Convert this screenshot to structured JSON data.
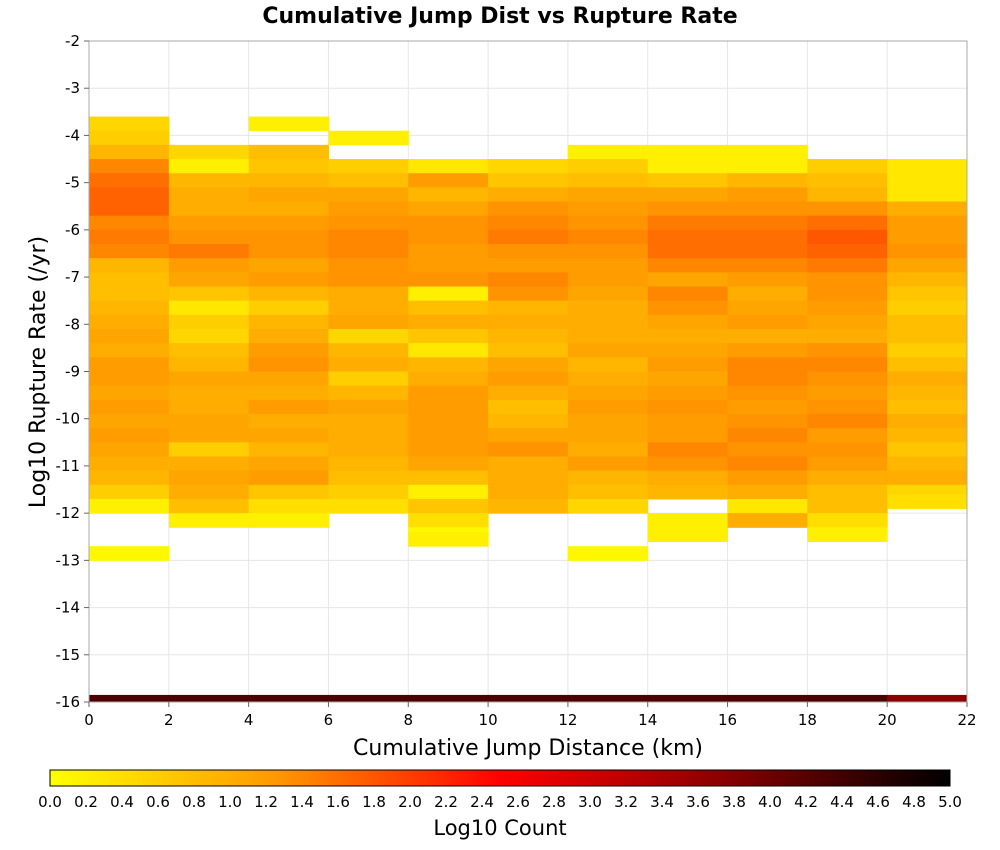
{
  "chart_data": {
    "type": "heatmap",
    "title": "Cumulative Jump Dist vs Rupture Rate",
    "xlabel": "Cumulative Jump Distance (km)",
    "ylabel": "Log10 Rupture Rate (/yr)",
    "xlim": [
      0,
      22
    ],
    "ylim": [
      -16,
      -2
    ],
    "xticks": [
      "0",
      "2",
      "4",
      "6",
      "8",
      "10",
      "12",
      "14",
      "16",
      "18",
      "20",
      "22"
    ],
    "yticks": [
      "-2",
      "-3",
      "-4",
      "-5",
      "-6",
      "-7",
      "-8",
      "-9",
      "-10",
      "-11",
      "-12",
      "-13",
      "-14",
      "-15",
      "-16"
    ],
    "grid": true,
    "x_bin_width": 2,
    "y_bin_height": 0.3,
    "colorbar": {
      "label": "Log10 Count",
      "range": [
        0,
        5
      ],
      "ticks": [
        "0.0",
        "0.2",
        "0.4",
        "0.6",
        "0.8",
        "1.0",
        "1.2",
        "1.4",
        "1.6",
        "1.8",
        "2.0",
        "2.2",
        "2.4",
        "2.6",
        "2.8",
        "3.0",
        "3.2",
        "3.4",
        "3.6",
        "3.8",
        "4.0",
        "4.2",
        "4.4",
        "4.6",
        "4.8",
        "5.0"
      ],
      "colormap": [
        "#ffff00",
        "#ff9900",
        "#ff0000",
        "#880000",
        "#000000"
      ]
    },
    "cells_note": "each column: x bin start (km) and list of [y bin top (log10 rate), log10 count]",
    "columns": [
      {
        "x": 0,
        "cells": [
          [
            -3.6,
            0.5
          ],
          [
            -3.9,
            0.6
          ],
          [
            -4.2,
            0.9
          ],
          [
            -4.5,
            1.4
          ],
          [
            -4.8,
            1.6
          ],
          [
            -5.1,
            1.7
          ],
          [
            -5.4,
            1.7
          ],
          [
            -5.7,
            1.4
          ],
          [
            -6.0,
            1.5
          ],
          [
            -6.3,
            1.4
          ],
          [
            -6.6,
            0.9
          ],
          [
            -6.9,
            0.8
          ],
          [
            -7.2,
            0.8
          ],
          [
            -7.5,
            0.9
          ],
          [
            -7.8,
            1.0
          ],
          [
            -8.1,
            1.1
          ],
          [
            -8.4,
            1.0
          ],
          [
            -8.7,
            1.2
          ],
          [
            -9.0,
            1.2
          ],
          [
            -9.3,
            1.1
          ],
          [
            -9.6,
            1.2
          ],
          [
            -9.9,
            1.1
          ],
          [
            -10.2,
            1.2
          ],
          [
            -10.5,
            1.1
          ],
          [
            -10.8,
            1.0
          ],
          [
            -11.1,
            0.9
          ],
          [
            -11.4,
            0.6
          ],
          [
            -11.7,
            0.2
          ],
          [
            -12.7,
            0.1
          ]
        ]
      },
      {
        "x": 2,
        "cells": [
          [
            -4.2,
            0.5
          ],
          [
            -4.5,
            0.2
          ],
          [
            -4.8,
            0.9
          ],
          [
            -5.1,
            1.0
          ],
          [
            -5.4,
            1.0
          ],
          [
            -5.7,
            1.2
          ],
          [
            -6.0,
            1.3
          ],
          [
            -6.3,
            1.5
          ],
          [
            -6.6,
            1.2
          ],
          [
            -6.9,
            1.1
          ],
          [
            -7.2,
            0.7
          ],
          [
            -7.5,
            0.3
          ],
          [
            -7.8,
            0.6
          ],
          [
            -8.1,
            0.5
          ],
          [
            -8.4,
            0.8
          ],
          [
            -8.7,
            0.9
          ],
          [
            -9.0,
            1.1
          ],
          [
            -9.3,
            1.0
          ],
          [
            -9.6,
            1.0
          ],
          [
            -9.9,
            1.1
          ],
          [
            -10.2,
            1.1
          ],
          [
            -10.5,
            0.6
          ],
          [
            -10.8,
            1.0
          ],
          [
            -11.1,
            1.1
          ],
          [
            -11.4,
            1.0
          ],
          [
            -11.7,
            0.8
          ],
          [
            -12.0,
            0.2
          ]
        ]
      },
      {
        "x": 4,
        "cells": [
          [
            -3.6,
            0.2
          ],
          [
            -4.2,
            0.8
          ],
          [
            -4.5,
            0.7
          ],
          [
            -4.8,
            0.9
          ],
          [
            -5.1,
            1.1
          ],
          [
            -5.4,
            1.0
          ],
          [
            -5.7,
            1.2
          ],
          [
            -6.0,
            1.3
          ],
          [
            -6.3,
            1.3
          ],
          [
            -6.6,
            1.1
          ],
          [
            -6.9,
            1.2
          ],
          [
            -7.2,
            0.9
          ],
          [
            -7.5,
            0.6
          ],
          [
            -7.8,
            0.9
          ],
          [
            -8.1,
            1.0
          ],
          [
            -8.4,
            1.2
          ],
          [
            -8.7,
            1.3
          ],
          [
            -9.0,
            1.1
          ],
          [
            -9.3,
            1.0
          ],
          [
            -9.6,
            1.2
          ],
          [
            -9.9,
            1.0
          ],
          [
            -10.2,
            1.1
          ],
          [
            -10.5,
            0.9
          ],
          [
            -10.8,
            1.1
          ],
          [
            -11.1,
            1.2
          ],
          [
            -11.4,
            0.7
          ],
          [
            -11.7,
            0.4
          ],
          [
            -12.0,
            0.2
          ]
        ]
      },
      {
        "x": 6,
        "cells": [
          [
            -3.9,
            0.2
          ],
          [
            -4.5,
            0.6
          ],
          [
            -4.8,
            0.8
          ],
          [
            -5.1,
            1.1
          ],
          [
            -5.4,
            1.2
          ],
          [
            -5.7,
            1.3
          ],
          [
            -6.0,
            1.4
          ],
          [
            -6.3,
            1.4
          ],
          [
            -6.6,
            1.3
          ],
          [
            -6.9,
            1.3
          ],
          [
            -7.2,
            1.0
          ],
          [
            -7.5,
            1.0
          ],
          [
            -7.8,
            1.1
          ],
          [
            -8.1,
            0.5
          ],
          [
            -8.4,
            0.9
          ],
          [
            -8.7,
            1.0
          ],
          [
            -9.0,
            0.6
          ],
          [
            -9.3,
            0.9
          ],
          [
            -9.6,
            1.1
          ],
          [
            -9.9,
            1.0
          ],
          [
            -10.2,
            1.0
          ],
          [
            -10.5,
            1.0
          ],
          [
            -10.8,
            0.9
          ],
          [
            -11.1,
            0.8
          ],
          [
            -11.4,
            0.6
          ],
          [
            -11.7,
            0.4
          ]
        ]
      },
      {
        "x": 8,
        "cells": [
          [
            -4.5,
            0.3
          ],
          [
            -4.8,
            1.2
          ],
          [
            -5.1,
            0.9
          ],
          [
            -5.4,
            1.1
          ],
          [
            -5.7,
            1.3
          ],
          [
            -6.0,
            1.3
          ],
          [
            -6.3,
            1.2
          ],
          [
            -6.6,
            1.2
          ],
          [
            -6.9,
            1.3
          ],
          [
            -7.2,
            0.2
          ],
          [
            -7.5,
            0.8
          ],
          [
            -7.8,
            1.0
          ],
          [
            -8.1,
            0.7
          ],
          [
            -8.4,
            0.3
          ],
          [
            -8.7,
            0.9
          ],
          [
            -9.0,
            1.0
          ],
          [
            -9.3,
            1.2
          ],
          [
            -9.6,
            1.2
          ],
          [
            -9.9,
            1.2
          ],
          [
            -10.2,
            1.2
          ],
          [
            -10.5,
            1.2
          ],
          [
            -10.8,
            1.1
          ],
          [
            -11.1,
            0.8
          ],
          [
            -11.4,
            0.2
          ],
          [
            -11.7,
            0.7
          ],
          [
            -12.0,
            0.4
          ],
          [
            -12.3,
            0.1
          ],
          [
            -12.4,
            0.2
          ]
        ]
      },
      {
        "x": 10,
        "cells": [
          [
            -4.5,
            0.5
          ],
          [
            -4.8,
            0.7
          ],
          [
            -5.1,
            1.0
          ],
          [
            -5.4,
            1.3
          ],
          [
            -5.7,
            1.4
          ],
          [
            -6.0,
            1.5
          ],
          [
            -6.3,
            1.3
          ],
          [
            -6.6,
            1.2
          ],
          [
            -6.9,
            1.4
          ],
          [
            -7.2,
            1.3
          ],
          [
            -7.5,
            0.9
          ],
          [
            -7.8,
            1.0
          ],
          [
            -8.1,
            0.9
          ],
          [
            -8.4,
            0.8
          ],
          [
            -8.7,
            1.1
          ],
          [
            -9.0,
            1.2
          ],
          [
            -9.3,
            1.0
          ],
          [
            -9.6,
            0.8
          ],
          [
            -9.9,
            0.9
          ],
          [
            -10.2,
            1.1
          ],
          [
            -10.5,
            1.3
          ],
          [
            -10.8,
            1.0
          ],
          [
            -11.1,
            1.0
          ],
          [
            -11.4,
            1.0
          ],
          [
            -11.7,
            0.9
          ]
        ]
      },
      {
        "x": 12,
        "cells": [
          [
            -4.2,
            0.2
          ],
          [
            -4.5,
            0.6
          ],
          [
            -4.8,
            0.8
          ],
          [
            -5.1,
            1.1
          ],
          [
            -5.4,
            1.2
          ],
          [
            -5.7,
            1.3
          ],
          [
            -6.0,
            1.4
          ],
          [
            -6.3,
            1.3
          ],
          [
            -6.6,
            1.2
          ],
          [
            -6.9,
            1.2
          ],
          [
            -7.2,
            1.1
          ],
          [
            -7.5,
            1.0
          ],
          [
            -7.8,
            1.0
          ],
          [
            -8.1,
            1.0
          ],
          [
            -8.4,
            1.1
          ],
          [
            -8.7,
            0.9
          ],
          [
            -9.0,
            1.0
          ],
          [
            -9.3,
            1.1
          ],
          [
            -9.6,
            1.2
          ],
          [
            -9.9,
            1.1
          ],
          [
            -10.2,
            1.1
          ],
          [
            -10.5,
            1.0
          ],
          [
            -10.8,
            1.2
          ],
          [
            -11.1,
            0.9
          ],
          [
            -11.4,
            0.8
          ],
          [
            -11.7,
            0.5
          ],
          [
            -12.7,
            0.1
          ]
        ]
      },
      {
        "x": 14,
        "cells": [
          [
            -4.2,
            0.2
          ],
          [
            -4.5,
            0.2
          ],
          [
            -4.8,
            0.7
          ],
          [
            -5.1,
            1.1
          ],
          [
            -5.4,
            1.3
          ],
          [
            -5.7,
            1.5
          ],
          [
            -6.0,
            1.6
          ],
          [
            -6.3,
            1.6
          ],
          [
            -6.6,
            1.4
          ],
          [
            -6.9,
            1.1
          ],
          [
            -7.2,
            1.4
          ],
          [
            -7.5,
            1.3
          ],
          [
            -7.8,
            1.1
          ],
          [
            -8.1,
            1.0
          ],
          [
            -8.4,
            1.1
          ],
          [
            -8.7,
            1.2
          ],
          [
            -9.0,
            1.1
          ],
          [
            -9.3,
            1.2
          ],
          [
            -9.6,
            1.3
          ],
          [
            -9.9,
            1.2
          ],
          [
            -10.2,
            1.2
          ],
          [
            -10.5,
            1.4
          ],
          [
            -10.8,
            1.3
          ],
          [
            -11.1,
            1.0
          ],
          [
            -11.4,
            0.9
          ],
          [
            -12.0,
            0.2
          ],
          [
            -12.3,
            0.2
          ]
        ]
      },
      {
        "x": 16,
        "cells": [
          [
            -4.2,
            0.2
          ],
          [
            -4.5,
            0.2
          ],
          [
            -4.8,
            0.9
          ],
          [
            -5.1,
            1.2
          ],
          [
            -5.4,
            1.3
          ],
          [
            -5.7,
            1.5
          ],
          [
            -6.0,
            1.6
          ],
          [
            -6.3,
            1.6
          ],
          [
            -6.6,
            1.4
          ],
          [
            -6.9,
            1.2
          ],
          [
            -7.2,
            1.0
          ],
          [
            -7.5,
            1.1
          ],
          [
            -7.8,
            1.2
          ],
          [
            -8.1,
            1.0
          ],
          [
            -8.4,
            1.2
          ],
          [
            -8.7,
            1.4
          ],
          [
            -9.0,
            1.4
          ],
          [
            -9.3,
            1.3
          ],
          [
            -9.6,
            1.2
          ],
          [
            -9.9,
            1.3
          ],
          [
            -10.2,
            1.4
          ],
          [
            -10.5,
            1.3
          ],
          [
            -10.8,
            1.4
          ],
          [
            -11.1,
            1.2
          ],
          [
            -11.4,
            1.0
          ],
          [
            -11.7,
            0.3
          ],
          [
            -12.0,
            1.0
          ]
        ]
      },
      {
        "x": 18,
        "cells": [
          [
            -4.5,
            0.6
          ],
          [
            -4.8,
            0.8
          ],
          [
            -5.1,
            0.9
          ],
          [
            -5.4,
            1.3
          ],
          [
            -5.7,
            1.6
          ],
          [
            -6.0,
            1.8
          ],
          [
            -6.3,
            1.7
          ],
          [
            -6.6,
            1.5
          ],
          [
            -6.9,
            1.3
          ],
          [
            -7.2,
            1.3
          ],
          [
            -7.5,
            1.2
          ],
          [
            -7.8,
            1.1
          ],
          [
            -8.1,
            1.0
          ],
          [
            -8.4,
            1.3
          ],
          [
            -8.7,
            1.4
          ],
          [
            -9.0,
            1.3
          ],
          [
            -9.3,
            1.2
          ],
          [
            -9.6,
            1.3
          ],
          [
            -9.9,
            1.4
          ],
          [
            -10.2,
            1.2
          ],
          [
            -10.5,
            1.3
          ],
          [
            -10.8,
            1.2
          ],
          [
            -11.1,
            1.0
          ],
          [
            -11.4,
            0.8
          ],
          [
            -11.7,
            0.8
          ],
          [
            -12.0,
            0.4
          ],
          [
            -12.3,
            0.2
          ]
        ]
      },
      {
        "x": 20,
        "cells": [
          [
            -4.5,
            0.3
          ],
          [
            -4.8,
            0.3
          ],
          [
            -5.1,
            0.3
          ],
          [
            -5.4,
            1.0
          ],
          [
            -5.7,
            1.2
          ],
          [
            -6.0,
            1.2
          ],
          [
            -6.3,
            1.3
          ],
          [
            -6.6,
            1.1
          ],
          [
            -6.9,
            0.9
          ],
          [
            -7.2,
            0.7
          ],
          [
            -7.5,
            0.6
          ],
          [
            -7.8,
            0.8
          ],
          [
            -8.1,
            0.8
          ],
          [
            -8.4,
            0.6
          ],
          [
            -8.7,
            0.8
          ],
          [
            -9.0,
            1.0
          ],
          [
            -9.3,
            0.9
          ],
          [
            -9.6,
            0.8
          ],
          [
            -9.9,
            1.0
          ],
          [
            -10.2,
            0.9
          ],
          [
            -10.5,
            0.7
          ],
          [
            -10.8,
            0.9
          ],
          [
            -11.1,
            1.0
          ],
          [
            -11.4,
            0.5
          ],
          [
            -11.6,
            0.4
          ]
        ]
      }
    ],
    "bottom_band": {
      "y": -15.85,
      "values": [
        4.3,
        4.3,
        4.3,
        4.3,
        4.3,
        4.3,
        4.3,
        4.3,
        4.3,
        4.3,
        3.7
      ]
    }
  }
}
